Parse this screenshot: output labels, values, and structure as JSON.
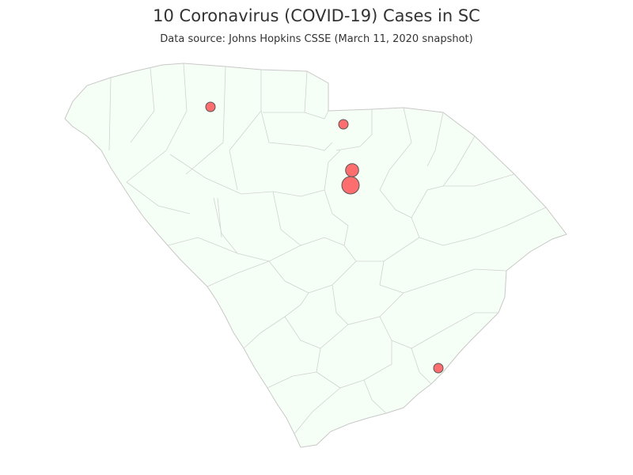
{
  "header": {
    "title": "10 Coronavirus (COVID-19) Cases in SC",
    "subtitle": "Data source: Johns Hopkins CSSE (March 11, 2020 snapshot)"
  },
  "map": {
    "region": "SC",
    "fill_color": "#f6fff6",
    "border_color": "#c8c8c8",
    "marker_color": "#ff6666",
    "cases": [
      {
        "id": "spartanburg",
        "count": 1
      },
      {
        "id": "lancaster",
        "count": 1
      },
      {
        "id": "kershaw-north",
        "count": 2
      },
      {
        "id": "kershaw-south",
        "count": 5
      },
      {
        "id": "charleston",
        "count": 1
      }
    ]
  }
}
